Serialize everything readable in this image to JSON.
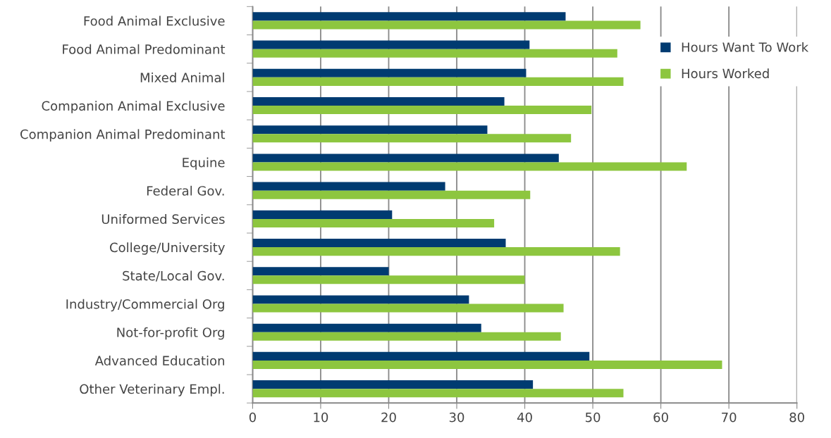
{
  "chart_data": {
    "type": "bar",
    "orientation": "horizontal",
    "categories": [
      "Food Animal Exclusive",
      "Food Animal Predominant",
      "Mixed Animal",
      "Companion Animal Exclusive",
      "Companion Animal Predominant",
      "Equine",
      "Federal Gov.",
      "Uniformed Services",
      "College/University",
      "State/Local Gov.",
      "Industry/Commercial Org",
      "Not-for-profit Org",
      "Advanced Education",
      "Other Veterinary Empl."
    ],
    "series": [
      {
        "name": "Hours Want To Work",
        "color": "#003b71",
        "values": [
          46,
          40.7,
          40.2,
          37,
          34.5,
          45,
          28.3,
          20.5,
          37.2,
          20,
          31.8,
          33.6,
          49.5,
          41.2
        ]
      },
      {
        "name": "Hours Worked",
        "color": "#8dc63f",
        "values": [
          57,
          53.6,
          54.5,
          49.8,
          46.8,
          63.8,
          40.8,
          35.5,
          54,
          40,
          45.7,
          45.3,
          69,
          54.5
        ]
      }
    ],
    "xlim": [
      0,
      80
    ],
    "xticks": [
      0,
      10,
      20,
      30,
      40,
      50,
      60,
      70,
      80
    ],
    "grid": "x",
    "legend": "top right"
  }
}
